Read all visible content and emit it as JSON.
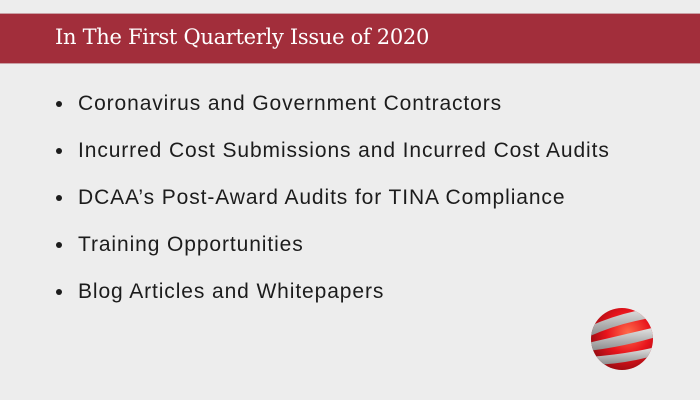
{
  "header": {
    "title": "In The First Quarterly Issue of 2020"
  },
  "items": [
    {
      "label": "Coronavirus and Government Contractors"
    },
    {
      "label": "Incurred Cost Submissions and Incurred Cost Audits"
    },
    {
      "label": "DCAA’s Post-Award Audits for TINA Compliance"
    },
    {
      "label": "Training Opportunities"
    },
    {
      "label": "Blog Articles and Whitepapers"
    }
  ],
  "colors": {
    "banner": "#a22e3b",
    "background": "#ededed"
  },
  "logo": {
    "icon": "red-silver-striped-sphere-icon"
  }
}
